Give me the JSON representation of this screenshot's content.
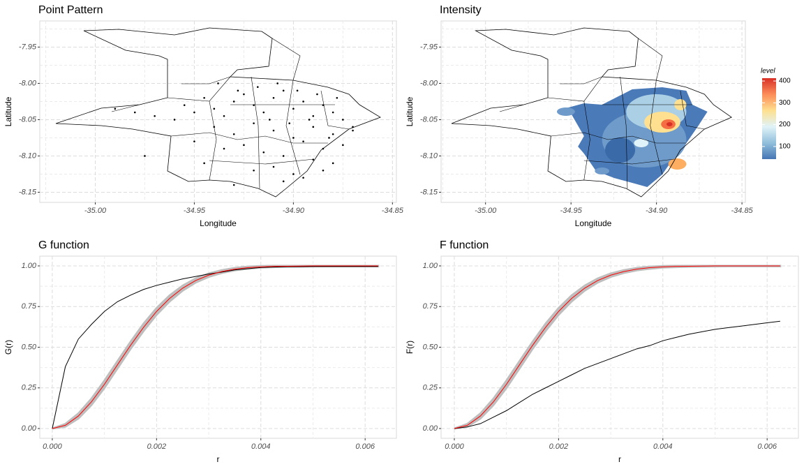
{
  "chart_data": [
    {
      "type": "scatter",
      "title": "Point Pattern",
      "xlabel": "Longitude",
      "ylabel": "Latitude",
      "xlim": [
        -35.028,
        -34.848
      ],
      "ylim": [
        -8.164,
        -7.914
      ],
      "xticks": [
        {
          "value": -35,
          "label": "-35.00"
        },
        -34.95,
        {
          "value": -34.9,
          "label": "-34.90"
        },
        -34.85
      ],
      "yticks": [
        -7.95,
        {
          "value": -8,
          "label": "-8.00"
        },
        -8.05,
        {
          "value": -8.1,
          "label": "-8.10"
        },
        -8.15
      ],
      "color": "#000000",
      "x": [
        -34.955,
        -34.95,
        -34.945,
        -34.94,
        -34.935,
        -34.93,
        -34.925,
        -34.92,
        -34.915,
        -34.91,
        -34.905,
        -34.9,
        -34.895,
        -34.89,
        -34.885,
        -34.88,
        -34.875,
        -34.87,
        -34.94,
        -34.93,
        -34.92,
        -34.91,
        -34.9,
        -34.89,
        -34.88,
        -34.87,
        -34.95,
        -34.935,
        -34.925,
        -34.915,
        -34.905,
        -34.895,
        -34.885,
        -34.875,
        -34.945,
        -34.92,
        -34.91,
        -34.9,
        -34.89,
        -34.88,
        -34.93,
        -34.905,
        -34.895,
        -34.885,
        -34.96,
        -34.97,
        -34.98,
        -34.99,
        -34.975,
        -34.918,
        -34.908,
        -34.898,
        -34.888,
        -34.878,
        -34.938,
        -34.928,
        -34.912,
        -34.902,
        -34.892,
        -34.882
      ],
      "y": [
        -8.03,
        -8.04,
        -8.02,
        -8.035,
        -8.045,
        -8.025,
        -8.015,
        -8.03,
        -8.04,
        -8.02,
        -8.01,
        -8.035,
        -8.025,
        -8.045,
        -8.03,
        -8.04,
        -8.05,
        -8.06,
        -8.06,
        -8.07,
        -8.055,
        -8.065,
        -8.075,
        -8.06,
        -8.07,
        -8.065,
        -8.08,
        -8.09,
        -8.085,
        -8.095,
        -8.1,
        -8.08,
        -8.09,
        -8.085,
        -8.11,
        -8.12,
        -8.115,
        -8.125,
        -8.105,
        -8.11,
        -8.14,
        -8.135,
        -8.13,
        -8.12,
        -8.05,
        -8.045,
        -8.04,
        -8.035,
        -8.1,
        -8.005,
        -8.0,
        -8.01,
        -8.015,
        -8.02,
        -8.0,
        -8.01,
        -8.05,
        -8.055,
        -8.05,
        -8.075
      ]
    },
    {
      "type": "density",
      "title": "Intensity",
      "xlabel": "Longitude",
      "ylabel": "Latitude",
      "xlim": [
        -35.026,
        -34.848
      ],
      "ylim": [
        -8.164,
        -7.914
      ],
      "xticks": [
        {
          "value": -35,
          "label": "-35.00"
        },
        -34.95,
        {
          "value": -34.9,
          "label": "-34.90"
        },
        -34.85
      ],
      "yticks": [
        -7.95,
        {
          "value": -8,
          "label": "-8.00"
        },
        -8.05,
        {
          "value": -8.1,
          "label": "-8.10"
        },
        -8.15
      ],
      "colorbar": {
        "title": "level",
        "lim": [
          42,
          413
        ],
        "ticks": [
          100,
          200,
          300,
          400
        ],
        "colors": [
          "#4575b4",
          "#91bfdb",
          "#e0f3f8",
          "#fee090",
          "#fc8d59",
          "#d73027"
        ]
      }
    },
    {
      "type": "line",
      "title": "G function",
      "xlabel": "r",
      "ylabel": "G(r)",
      "xlim": [
        -0.00024,
        0.0066
      ],
      "ylim": [
        -0.06,
        1.06
      ],
      "xticks": [
        {
          "value": 0,
          "label": "0.000"
        },
        0.002,
        0.004,
        0.006
      ],
      "yticks": [
        {
          "value": 0,
          "label": "0.00"
        },
        0.25,
        {
          "value": 0.5,
          "label": "0.50"
        },
        0.75,
        {
          "value": 1,
          "label": "1.00"
        }
      ],
      "x": [
        0,
        0.00025,
        0.0005,
        0.00075,
        0.001,
        0.00125,
        0.0015,
        0.00175,
        0.002,
        0.00225,
        0.0025,
        0.00275,
        0.003,
        0.00325,
        0.0035,
        0.00375,
        0.004,
        0.00425,
        0.0045,
        0.00475,
        0.005,
        0.00525,
        0.0055,
        0.00575,
        0.006,
        0.00625
      ],
      "band": {
        "color": "#bebebe",
        "lower": [
          0,
          0.012,
          0.062,
          0.145,
          0.25,
          0.37,
          0.49,
          0.6,
          0.7,
          0.782,
          0.848,
          0.898,
          0.933,
          0.957,
          0.973,
          0.983,
          0.99,
          0.993,
          0.995,
          0.996,
          0.997,
          0.998,
          0.998,
          0.998,
          0.998,
          0.998
        ],
        "upper": [
          0,
          0.028,
          0.092,
          0.183,
          0.294,
          0.414,
          0.532,
          0.644,
          0.74,
          0.818,
          0.878,
          0.922,
          0.953,
          0.973,
          0.987,
          0.995,
          0.999,
          1,
          1,
          1,
          1,
          1,
          1,
          1,
          1,
          1
        ]
      },
      "series": [
        {
          "color": "#000000",
          "values": [
            0,
            0.38,
            0.55,
            0.64,
            0.72,
            0.78,
            0.82,
            0.855,
            0.88,
            0.9,
            0.92,
            0.935,
            0.95,
            0.962,
            0.975,
            0.983,
            0.99,
            0.993,
            0.995,
            0.995,
            0.996,
            0.996,
            0.996,
            0.996,
            0.996,
            0.996
          ]
        },
        {
          "color": "#ff0000",
          "values": [
            0,
            0.02,
            0.077,
            0.164,
            0.272,
            0.392,
            0.511,
            0.622,
            0.72,
            0.8,
            0.863,
            0.91,
            0.943,
            0.965,
            0.98,
            0.989,
            0.994,
            0.997,
            0.998,
            0.999,
            1,
            1,
            1,
            1,
            1,
            1
          ]
        }
      ]
    },
    {
      "type": "line",
      "title": "F function",
      "xlabel": "r",
      "ylabel": "F(r)",
      "xlim": [
        -0.000254,
        0.0066
      ],
      "ylim": [
        -0.06,
        1.06
      ],
      "xticks": [
        {
          "value": 0,
          "label": "0.000"
        },
        0.002,
        0.004,
        0.006
      ],
      "yticks": [
        {
          "value": 0,
          "label": "0.00"
        },
        0.25,
        {
          "value": 0.5,
          "label": "0.50"
        },
        0.75,
        {
          "value": 1,
          "label": "1.00"
        }
      ],
      "x": [
        0,
        0.00025,
        0.0005,
        0.00075,
        0.001,
        0.00125,
        0.0015,
        0.00175,
        0.002,
        0.00225,
        0.0025,
        0.00275,
        0.003,
        0.00325,
        0.0035,
        0.00375,
        0.004,
        0.00425,
        0.0045,
        0.00475,
        0.005,
        0.00525,
        0.0055,
        0.00575,
        0.006,
        0.00625
      ],
      "band": {
        "color": "#bebebe",
        "lower": [
          0,
          0.012,
          0.062,
          0.145,
          0.25,
          0.37,
          0.49,
          0.6,
          0.7,
          0.782,
          0.848,
          0.898,
          0.933,
          0.957,
          0.973,
          0.983,
          0.99,
          0.993,
          0.995,
          0.996,
          0.997,
          0.998,
          0.998,
          0.998,
          0.998,
          0.998
        ],
        "upper": [
          0,
          0.028,
          0.092,
          0.183,
          0.294,
          0.414,
          0.532,
          0.644,
          0.74,
          0.818,
          0.878,
          0.922,
          0.953,
          0.973,
          0.987,
          0.995,
          0.999,
          1,
          1,
          1,
          1,
          1,
          1,
          1,
          1,
          1
        ]
      },
      "series": [
        {
          "color": "#000000",
          "values": [
            0,
            0.01,
            0.03,
            0.07,
            0.11,
            0.16,
            0.21,
            0.25,
            0.29,
            0.33,
            0.37,
            0.4,
            0.43,
            0.46,
            0.49,
            0.51,
            0.54,
            0.56,
            0.58,
            0.595,
            0.61,
            0.62,
            0.63,
            0.64,
            0.65,
            0.66
          ]
        },
        {
          "color": "#ff0000",
          "values": [
            0,
            0.02,
            0.077,
            0.164,
            0.272,
            0.392,
            0.511,
            0.622,
            0.72,
            0.8,
            0.863,
            0.91,
            0.943,
            0.965,
            0.98,
            0.989,
            0.994,
            0.997,
            0.998,
            0.999,
            1,
            1,
            1,
            1,
            1,
            1
          ]
        }
      ]
    }
  ]
}
